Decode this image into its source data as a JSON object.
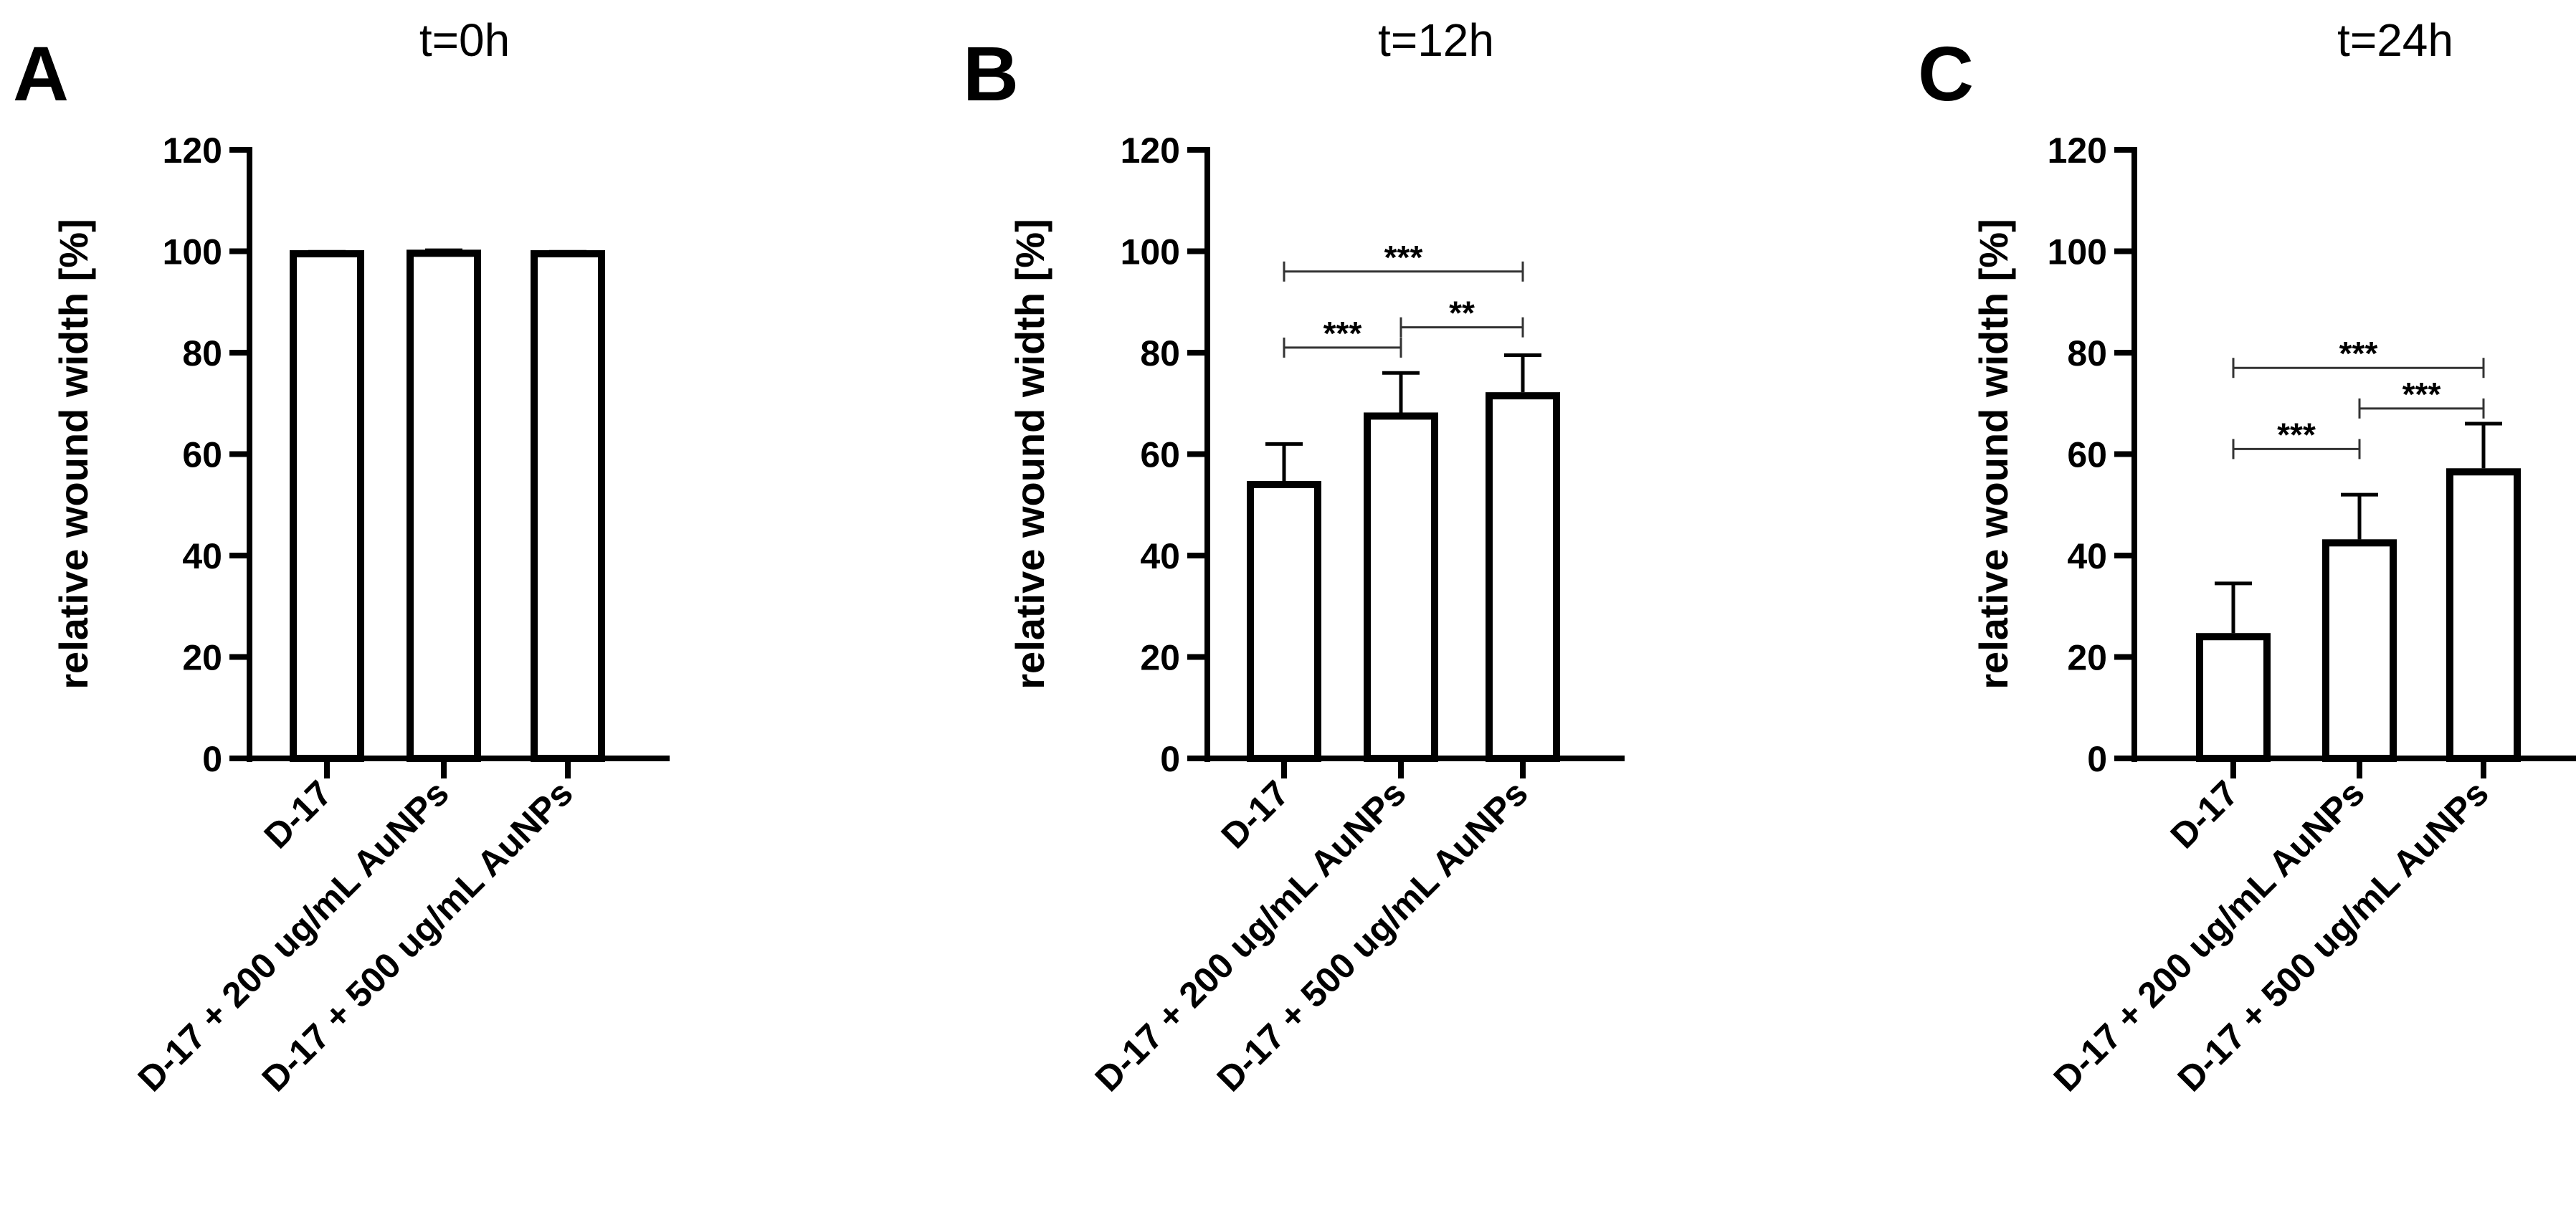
{
  "chart_data": [
    {
      "type": "bar",
      "panel_label": "A",
      "title": "t=0h",
      "ylabel": "relative wound width [%]",
      "ylim": [
        0,
        120
      ],
      "yticks": [
        0,
        20,
        40,
        60,
        80,
        100,
        120
      ],
      "categories": [
        "D-17",
        "D-17 + 200 ug/mL AuNPs",
        "D-17 + 500 ug/mL AuNPs"
      ],
      "values": [
        99.5,
        99.6,
        99.5
      ],
      "errors": [
        0.4,
        0.6,
        0.4
      ],
      "significance": []
    },
    {
      "type": "bar",
      "panel_label": "B",
      "title": "t=12h",
      "ylabel": "relative wound  width [%]",
      "ylim": [
        0,
        120
      ],
      "yticks": [
        0,
        20,
        40,
        60,
        80,
        100,
        120
      ],
      "categories": [
        "D-17",
        "D-17 + 200 ug/mL AuNPs",
        "D-17 + 500 ug/mL AuNPs"
      ],
      "values": [
        54,
        67.5,
        71.5
      ],
      "errors": [
        8,
        8.5,
        8
      ],
      "significance": [
        {
          "from": 0,
          "to": 2,
          "y": 96,
          "label": "***"
        },
        {
          "from": 0,
          "to": 1,
          "y": 81,
          "label": "***"
        },
        {
          "from": 1,
          "to": 2,
          "y": 85,
          "label": "**"
        }
      ]
    },
    {
      "type": "bar",
      "panel_label": "C",
      "title": "t=24h",
      "ylabel": "relative wound width [%]",
      "ylim": [
        0,
        120
      ],
      "yticks": [
        0,
        20,
        40,
        60,
        80,
        100,
        120
      ],
      "categories": [
        "D-17",
        "D-17 + 200 ug/mL AuNPs",
        "D-17 + 500 ug/mL AuNPs"
      ],
      "values": [
        24,
        42.5,
        56.5
      ],
      "errors": [
        10.5,
        9.5,
        9.5
      ],
      "significance": [
        {
          "from": 0,
          "to": 2,
          "y": 77,
          "label": "***"
        },
        {
          "from": 1,
          "to": 2,
          "y": 69,
          "label": "***"
        },
        {
          "from": 0,
          "to": 1,
          "y": 61,
          "label": "***"
        }
      ]
    }
  ]
}
